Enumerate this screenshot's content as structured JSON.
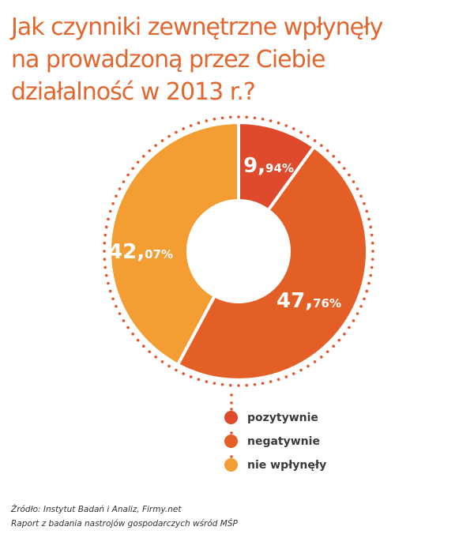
{
  "title": {
    "lines": [
      "Jak czynniki zewnętrzne wpłynęły",
      "na prowadzoną przez Ciebie",
      "działalność w 2013 r.?"
    ]
  },
  "chart_data": {
    "type": "pie",
    "variant": "donut",
    "title": "Jak czynniki zewnętrzne wpłynęły na prowadzoną przez Ciebie działalność w 2013 r.?",
    "categories": [
      "pozytywnie",
      "negatywnie",
      "nie wpłynęły"
    ],
    "values": [
      9.94,
      47.76,
      42.07
    ],
    "labels": [
      {
        "int": "9,",
        "dec": "94%"
      },
      {
        "int": "47,",
        "dec": "76%"
      },
      {
        "int": "42,",
        "dec": "07%"
      }
    ],
    "colors": [
      "#df4a2c",
      "#e45f26",
      "#f49d33"
    ],
    "legend_position": "bottom-center",
    "start_angle_deg": 0,
    "direction": "clockwise"
  },
  "legend": {
    "items": [
      {
        "label": "pozytywnie",
        "color": "#df4a2c"
      },
      {
        "label": "negatywnie",
        "color": "#e45f26"
      },
      {
        "label": "nie wpłynęły",
        "color": "#f49d33"
      }
    ]
  },
  "footer": {
    "source": "Źródło: Instytut Badań i Analiz, Firmy.net",
    "report": "Raport z badania nastrojów gospodarczych wśród MŚP"
  },
  "colors": {
    "title": "#e2662d",
    "dots": "#e2552d"
  }
}
